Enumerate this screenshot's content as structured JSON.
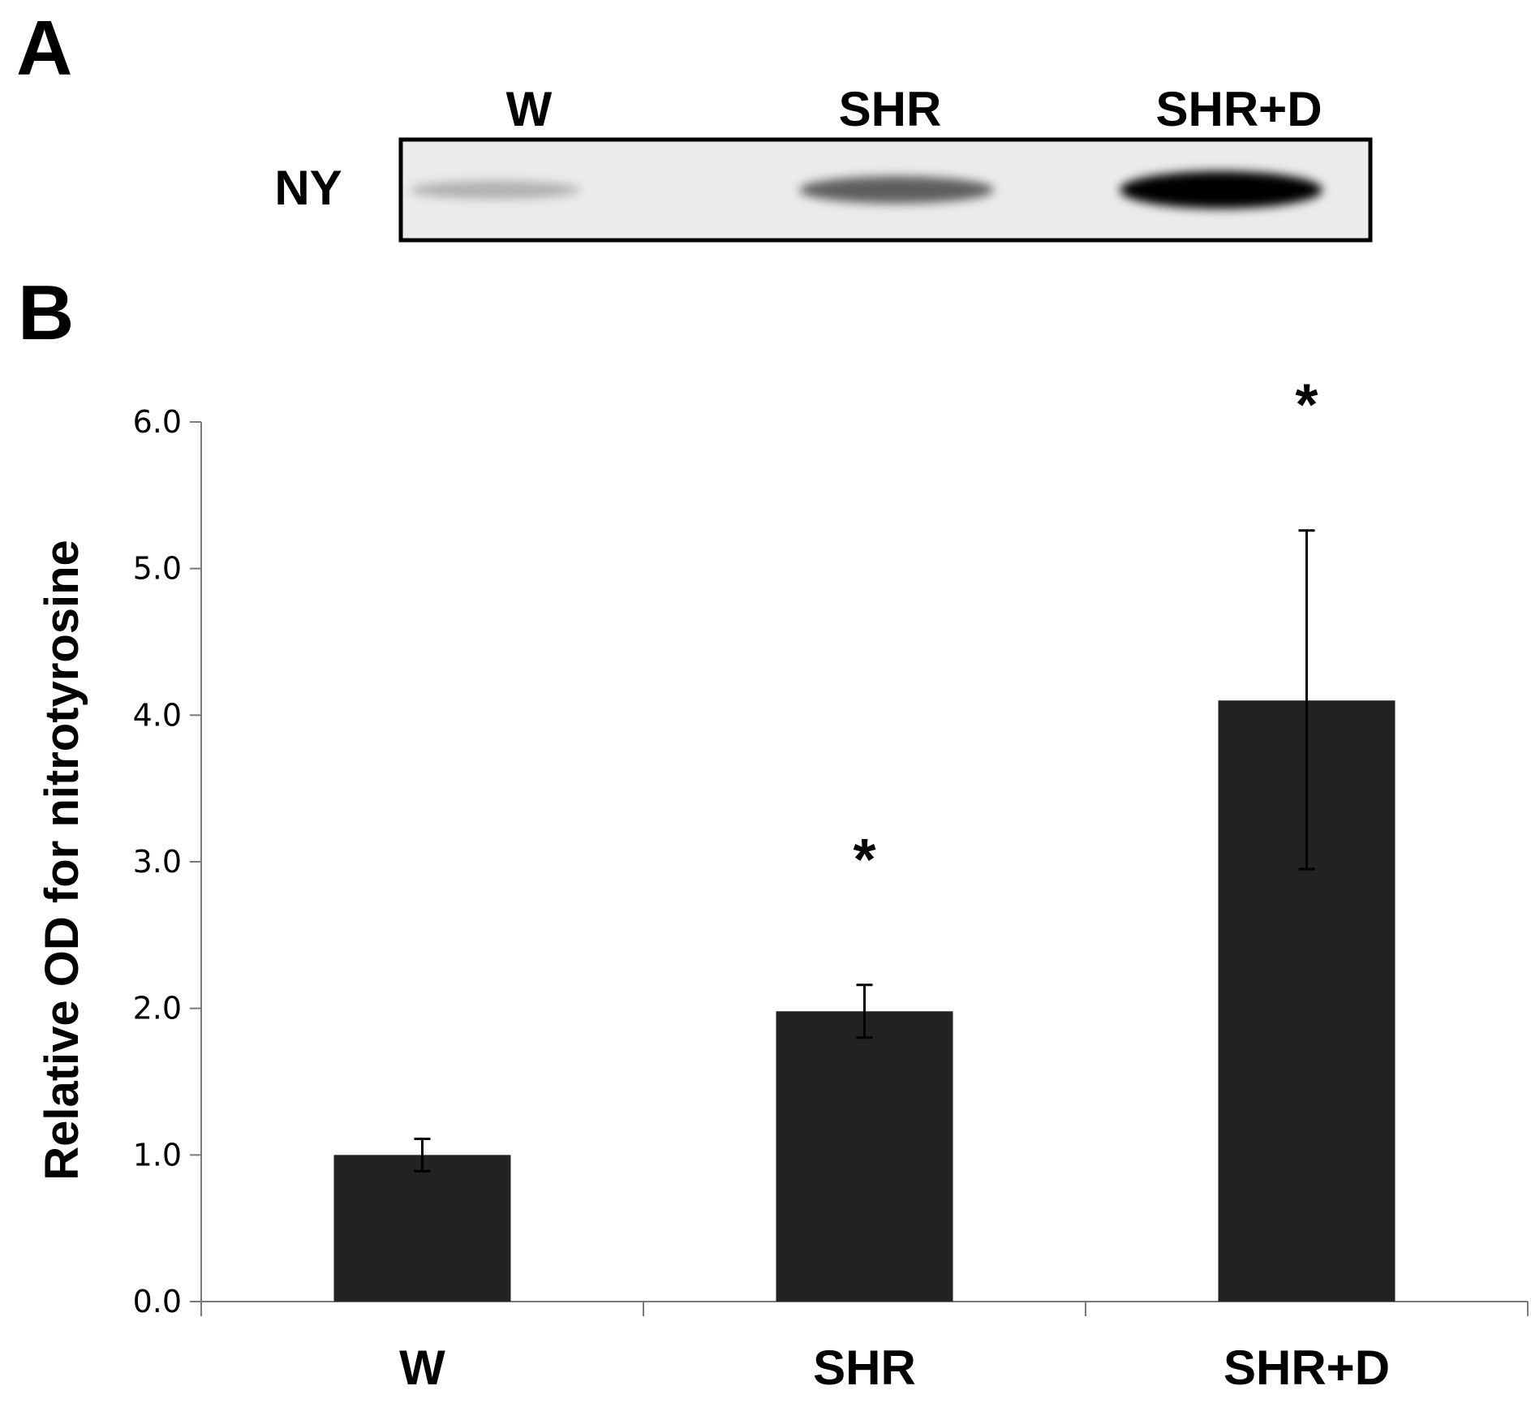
{
  "panel_a": {
    "letter": "A",
    "row_label": "NY",
    "lanes": [
      "W",
      "SHR",
      "SHR+D"
    ],
    "band_intensity": [
      0.15,
      0.55,
      1.0
    ]
  },
  "panel_b": {
    "letter": "B"
  },
  "chart_data": {
    "type": "bar",
    "categories": [
      "W",
      "SHR",
      "SHR+D"
    ],
    "values": [
      1.0,
      1.98,
      4.1
    ],
    "error_plus": [
      0.11,
      0.18,
      1.16
    ],
    "error_minus": [
      0.11,
      0.18,
      1.15
    ],
    "significance": [
      "",
      "*",
      "*"
    ],
    "ylabel": "Relative OD for nitrotyrosine",
    "xlabel": "",
    "ylim": [
      0,
      6
    ],
    "yticks": [
      "0.0",
      "1.0",
      "2.0",
      "3.0",
      "4.0",
      "5.0",
      "6.0"
    ],
    "bar_color": "#222222",
    "grid": false
  }
}
